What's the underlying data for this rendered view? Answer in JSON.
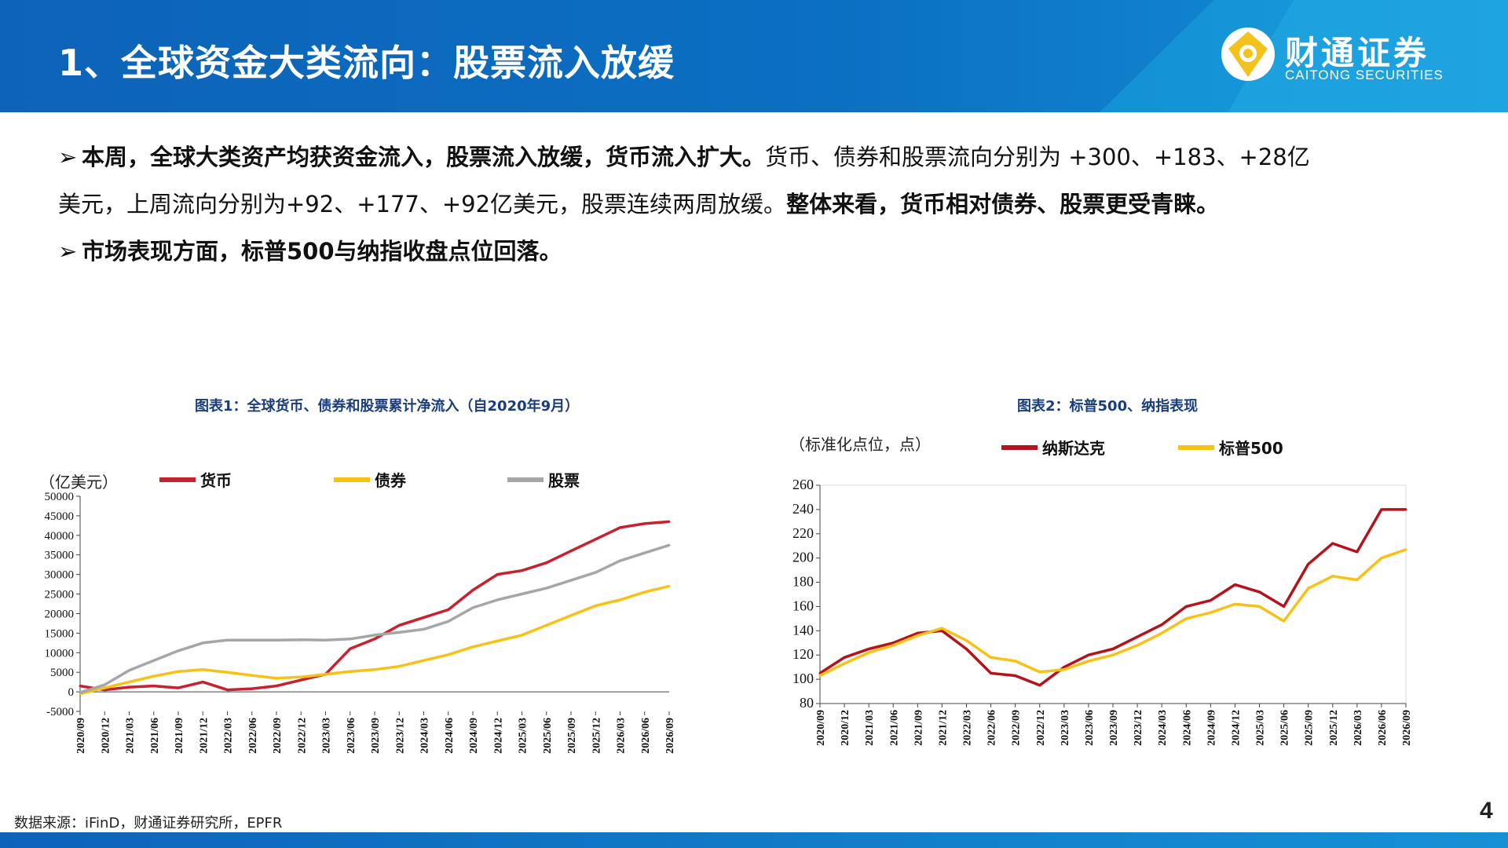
{
  "header": {
    "title": "1、全球资金大类流向：股票流入放缓",
    "logo_cn": "财通证券",
    "logo_en": "CAITONG SECURITIES",
    "logo_icon": "caitong-logo-icon",
    "colors": {
      "primary": "#0d63b8",
      "accent": "#1aa3e0",
      "logo_gold": "#f4c21c"
    }
  },
  "bullets": [
    {
      "bold": "本周，全球大类资产均获资金流入，股票流入放缓，货币流入扩大。",
      "normal": "货币、债券和股票流向分别为 +300、+183、+28亿",
      "line2_normal": "美元，上周流向分别为+92、+177、+92亿美元，股票连续两周放缓。",
      "line2_bold": "整体来看，货币相对债券、股票更受青睐。"
    },
    {
      "bold": "市场表现方面，标普500与纳指收盘点位回落。",
      "normal": ""
    }
  ],
  "chart1": {
    "title": "图表1：全球货币、债券和股票累计净流入（自2020年9月）",
    "unit": "（亿美元）"
  },
  "chart2": {
    "title": "图表2：标普500、纳指表现",
    "unit": "（标准化点位，点）"
  },
  "source": "数据来源：iFinD，财通证券研究所，EPFR",
  "page_number": "4",
  "chart_data": [
    {
      "type": "line",
      "title": "图表1：全球货币、债券和股票累计净流入（自2020年9月）",
      "ylabel": "（亿美元）",
      "xlabel": "",
      "ylim": [
        -5000,
        50000
      ],
      "yticks": [
        -5000,
        0,
        5000,
        10000,
        15000,
        20000,
        25000,
        30000,
        35000,
        40000,
        45000,
        50000
      ],
      "categories": [
        "2020/09",
        "2020/12",
        "2021/03",
        "2021/06",
        "2021/09",
        "2021/12",
        "2022/03",
        "2022/06",
        "2022/09",
        "2022/12",
        "2023/03",
        "2023/06",
        "2023/09",
        "2023/12",
        "2024/03",
        "2024/06",
        "2024/09",
        "2024/12",
        "2025/03",
        "2025/06",
        "2025/09",
        "2025/12",
        "2026/03",
        "2026/06",
        "2026/09"
      ],
      "legend_position": "top",
      "series": [
        {
          "name": "货币",
          "color": "#c8202f",
          "values": [
            1500,
            500,
            1200,
            1500,
            1000,
            2500,
            500,
            800,
            1500,
            3000,
            4500,
            11000,
            13500,
            17000,
            19000,
            21000,
            26000,
            30000,
            31000,
            33000,
            36000,
            39000,
            42000,
            43000,
            43500
          ]
        },
        {
          "name": "债券",
          "color": "#f7c115",
          "values": [
            -500,
            1000,
            2500,
            4000,
            5200,
            5700,
            5000,
            4200,
            3500,
            3800,
            4500,
            5200,
            5700,
            6500,
            8000,
            9500,
            11500,
            13000,
            14500,
            17000,
            19500,
            22000,
            23500,
            25500,
            27000
          ]
        },
        {
          "name": "股票",
          "color": "#a6a6a6",
          "values": [
            -200,
            1800,
            5500,
            8000,
            10500,
            12500,
            13200,
            13200,
            13200,
            13300,
            13200,
            13500,
            14500,
            15200,
            16000,
            18000,
            21500,
            23500,
            25000,
            26500,
            28500,
            30500,
            33500,
            35500,
            37500
          ]
        }
      ]
    },
    {
      "type": "line",
      "title": "图表2：标普500、纳指表现",
      "ylabel": "（标准化点位，点）",
      "xlabel": "",
      "ylim": [
        80,
        260
      ],
      "yticks": [
        80,
        100,
        120,
        140,
        160,
        180,
        200,
        220,
        240,
        260
      ],
      "categories": [
        "2020/09",
        "2020/12",
        "2021/03",
        "2021/06",
        "2021/09",
        "2021/12",
        "2022/03",
        "2022/06",
        "2022/09",
        "2022/12",
        "2023/03",
        "2023/06",
        "2023/09",
        "2023/12",
        "2024/03",
        "2024/06",
        "2024/09",
        "2024/12",
        "2025/03",
        "2025/06",
        "2025/09",
        "2025/12",
        "2026/03",
        "2026/06",
        "2026/09"
      ],
      "legend_position": "top",
      "series": [
        {
          "name": "纳斯达克",
          "color": "#b5121b",
          "values": [
            105,
            118,
            125,
            130,
            138,
            140,
            125,
            105,
            103,
            95,
            110,
            120,
            125,
            135,
            145,
            160,
            165,
            178,
            172,
            160,
            195,
            212,
            205,
            240,
            240
          ]
        },
        {
          "name": "标普500",
          "color": "#f7c115",
          "values": [
            103,
            113,
            122,
            128,
            136,
            142,
            132,
            118,
            115,
            106,
            108,
            115,
            120,
            128,
            138,
            150,
            155,
            162,
            160,
            148,
            175,
            185,
            182,
            200,
            207
          ]
        }
      ]
    }
  ]
}
